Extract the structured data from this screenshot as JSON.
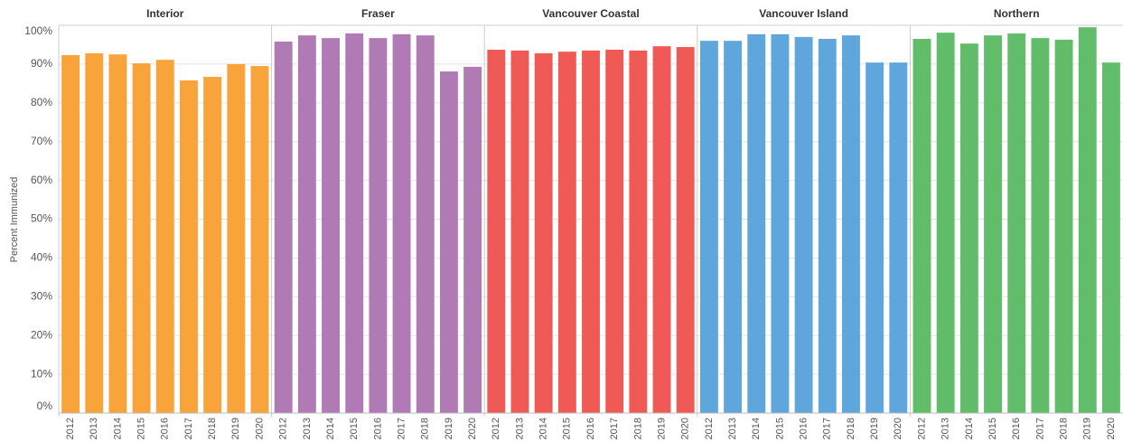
{
  "chart_data": {
    "type": "bar",
    "ylabel": "Percent Immunized",
    "ylim": [
      0,
      100
    ],
    "yticks": [
      {
        "value": 0,
        "label": "0%"
      },
      {
        "value": 10,
        "label": "10%"
      },
      {
        "value": 20,
        "label": "20%"
      },
      {
        "value": 30,
        "label": "30%"
      },
      {
        "value": 40,
        "label": "40%"
      },
      {
        "value": 50,
        "label": "50%"
      },
      {
        "value": 60,
        "label": "60%"
      },
      {
        "value": 70,
        "label": "70%"
      },
      {
        "value": 80,
        "label": "80%"
      },
      {
        "value": 90,
        "label": "90%"
      },
      {
        "value": 100,
        "label": "100%"
      }
    ],
    "grid": true,
    "panels": [
      {
        "title": "Interior",
        "color": "#f9a43a",
        "categories": [
          "2012",
          "2013",
          "2014",
          "2015",
          "2016",
          "2017",
          "2018",
          "2019",
          "2020"
        ],
        "values": [
          92.3,
          92.8,
          92.5,
          90.2,
          91.1,
          85.8,
          86.7,
          90.0,
          89.5
        ]
      },
      {
        "title": "Fraser",
        "color": "#b07ab5",
        "categories": [
          "2012",
          "2013",
          "2014",
          "2015",
          "2016",
          "2017",
          "2018",
          "2019",
          "2020"
        ],
        "values": [
          95.8,
          97.4,
          96.7,
          97.9,
          96.7,
          97.7,
          97.4,
          88.1,
          89.3
        ]
      },
      {
        "title": "Vancouver Coastal",
        "color": "#ef5a56",
        "categories": [
          "2012",
          "2013",
          "2014",
          "2015",
          "2016",
          "2017",
          "2018",
          "2019",
          "2020"
        ],
        "values": [
          93.7,
          93.5,
          92.8,
          93.2,
          93.5,
          93.7,
          93.5,
          94.6,
          94.4
        ]
      },
      {
        "title": "Vancouver Island",
        "color": "#5fa6dd",
        "categories": [
          "2012",
          "2013",
          "2014",
          "2015",
          "2016",
          "2017",
          "2018",
          "2019",
          "2020"
        ],
        "values": [
          96.0,
          96.0,
          97.7,
          97.7,
          97.0,
          96.5,
          97.4,
          90.4,
          90.4
        ]
      },
      {
        "title": "Northern",
        "color": "#62bd6a",
        "categories": [
          "2012",
          "2013",
          "2014",
          "2015",
          "2016",
          "2017",
          "2018",
          "2019",
          "2020"
        ],
        "values": [
          96.5,
          98.1,
          95.3,
          97.4,
          97.9,
          96.7,
          96.3,
          99.5,
          90.4
        ]
      }
    ]
  }
}
